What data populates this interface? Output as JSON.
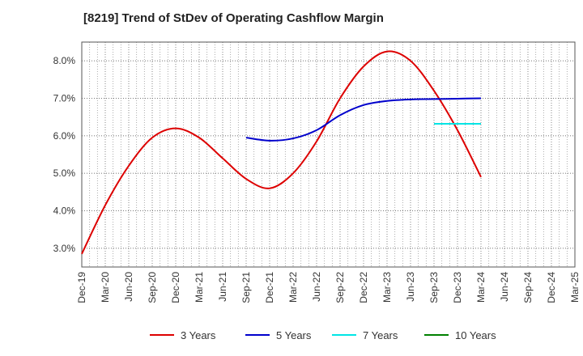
{
  "chart_data": {
    "type": "line",
    "title": "[8219]  Trend of StDev of Operating Cashflow Margin",
    "xlabel": "",
    "ylabel": "",
    "categories": [
      "Dec-19",
      "Mar-20",
      "Jun-20",
      "Sep-20",
      "Dec-20",
      "Mar-21",
      "Jun-21",
      "Sep-21",
      "Dec-21",
      "Mar-22",
      "Jun-22",
      "Sep-22",
      "Dec-22",
      "Mar-23",
      "Jun-23",
      "Sep-23",
      "Dec-23",
      "Mar-24",
      "Jun-24",
      "Sep-24",
      "Dec-24",
      "Mar-25"
    ],
    "ylim": [
      2.5,
      8.5
    ],
    "yticks": [
      3.0,
      4.0,
      5.0,
      6.0,
      7.0,
      8.0
    ],
    "ytick_labels": [
      "3.0%",
      "4.0%",
      "5.0%",
      "6.0%",
      "7.0%",
      "8.0%"
    ],
    "grid": true,
    "legend_position": "bottom",
    "series": [
      {
        "name": "3 Years",
        "color": "#dd0000",
        "values": [
          2.85,
          4.15,
          5.2,
          5.95,
          6.2,
          5.95,
          5.4,
          4.85,
          4.6,
          5.0,
          5.85,
          7.0,
          7.85,
          8.25,
          8.0,
          7.2,
          6.15,
          4.9,
          null,
          null,
          null,
          null
        ]
      },
      {
        "name": "5 Years",
        "color": "#0000cc",
        "values": [
          null,
          null,
          null,
          null,
          null,
          null,
          null,
          5.95,
          5.87,
          5.93,
          6.15,
          6.55,
          6.82,
          6.93,
          6.97,
          6.98,
          6.99,
          7.0,
          null,
          null,
          null,
          null
        ]
      },
      {
        "name": "7 Years",
        "color": "#00e5e5",
        "values": [
          null,
          null,
          null,
          null,
          null,
          null,
          null,
          null,
          null,
          null,
          null,
          null,
          null,
          null,
          null,
          6.32,
          6.32,
          6.32,
          null,
          null,
          null,
          null
        ]
      },
      {
        "name": "10 Years",
        "color": "#008000",
        "values": [
          null,
          null,
          null,
          null,
          null,
          null,
          null,
          null,
          null,
          null,
          null,
          null,
          null,
          null,
          null,
          null,
          null,
          null,
          null,
          null,
          null,
          null
        ]
      }
    ]
  }
}
